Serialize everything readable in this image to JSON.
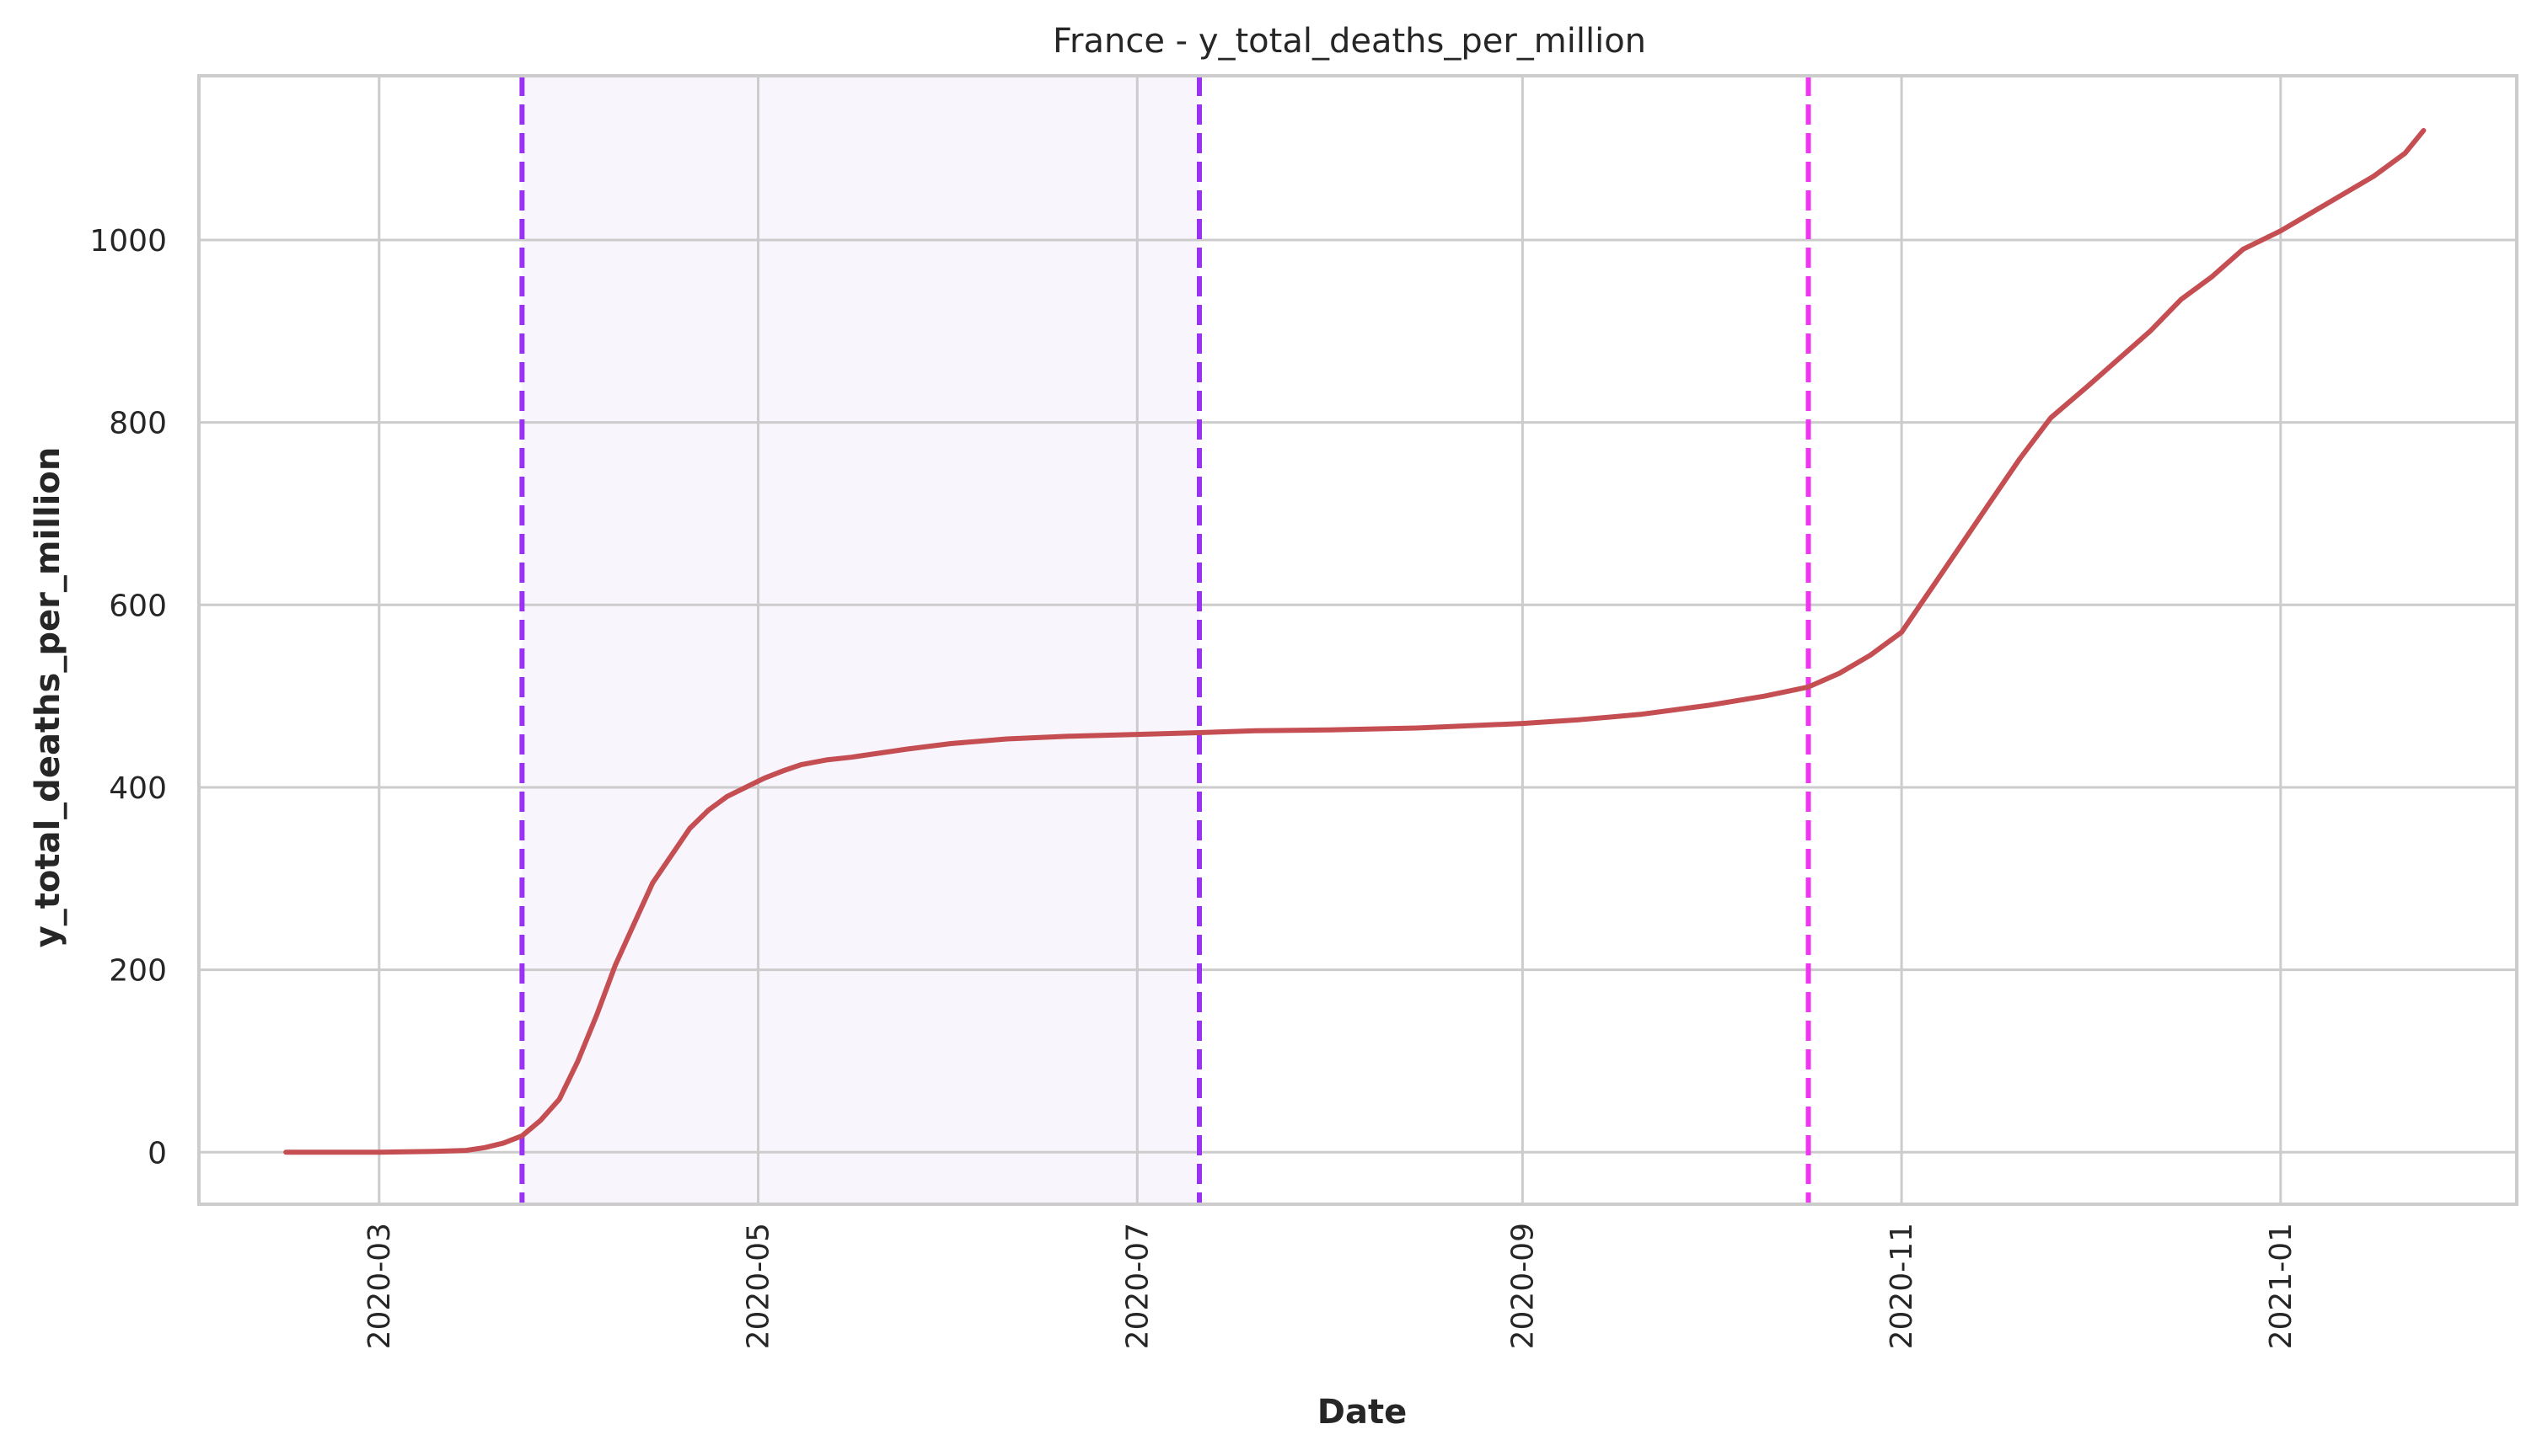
{
  "chart_data": {
    "type": "line",
    "title": "France - y_total_deaths_per_million",
    "xlabel": "Date",
    "ylabel": "y_total_deaths_per_million",
    "xlim": [
      "2020-02-01",
      "2021-02-08"
    ],
    "ylim": [
      -57,
      1180
    ],
    "grid": true,
    "x_ticks": [
      "2020-03",
      "2020-05",
      "2020-07",
      "2020-09",
      "2020-11",
      "2021-01"
    ],
    "y_ticks": [
      0,
      200,
      400,
      600,
      800,
      1000
    ],
    "shaded_region": {
      "x0": "2020-03-24",
      "x1": "2020-07-11",
      "color": "#F8F5FD"
    },
    "vlines": [
      {
        "x": "2020-03-24",
        "color": "#9A32F2",
        "style": "dashed"
      },
      {
        "x": "2020-07-11",
        "color": "#9A32F2",
        "style": "dashed"
      },
      {
        "x": "2020-10-17",
        "color": "#EE36EE",
        "style": "dashed"
      }
    ],
    "series": [
      {
        "color": "#C44E52",
        "x": [
          "2020-02-15",
          "2020-03-01",
          "2020-03-10",
          "2020-03-15",
          "2020-03-18",
          "2020-03-21",
          "2020-03-24",
          "2020-03-27",
          "2020-03-30",
          "2020-04-02",
          "2020-04-05",
          "2020-04-08",
          "2020-04-11",
          "2020-04-14",
          "2020-04-17",
          "2020-04-20",
          "2020-04-23",
          "2020-04-26",
          "2020-04-29",
          "2020-05-02",
          "2020-05-05",
          "2020-05-08",
          "2020-05-12",
          "2020-05-16",
          "2020-05-20",
          "2020-05-25",
          "2020-06-01",
          "2020-06-10",
          "2020-06-20",
          "2020-07-01",
          "2020-07-11",
          "2020-07-20",
          "2020-08-01",
          "2020-08-15",
          "2020-09-01",
          "2020-09-10",
          "2020-09-20",
          "2020-10-01",
          "2020-10-10",
          "2020-10-17",
          "2020-10-22",
          "2020-10-27",
          "2020-11-01",
          "2020-11-05",
          "2020-11-10",
          "2020-11-15",
          "2020-11-20",
          "2020-11-25",
          "2020-12-01",
          "2020-12-06",
          "2020-12-11",
          "2020-12-16",
          "2020-12-21",
          "2020-12-26",
          "2021-01-01",
          "2021-01-06",
          "2021-01-11",
          "2021-01-16",
          "2021-01-21",
          "2021-01-24"
        ],
        "y": [
          0,
          0,
          1,
          2,
          5,
          10,
          18,
          35,
          58,
          100,
          150,
          205,
          250,
          295,
          325,
          355,
          375,
          390,
          400,
          410,
          418,
          425,
          430,
          433,
          437,
          442,
          448,
          453,
          456,
          458,
          460,
          462,
          463,
          465,
          470,
          474,
          480,
          490,
          500,
          510,
          525,
          545,
          570,
          610,
          660,
          710,
          760,
          805,
          840,
          870,
          900,
          935,
          960,
          990,
          1010,
          1030,
          1050,
          1070,
          1095,
          1120
        ]
      }
    ]
  }
}
